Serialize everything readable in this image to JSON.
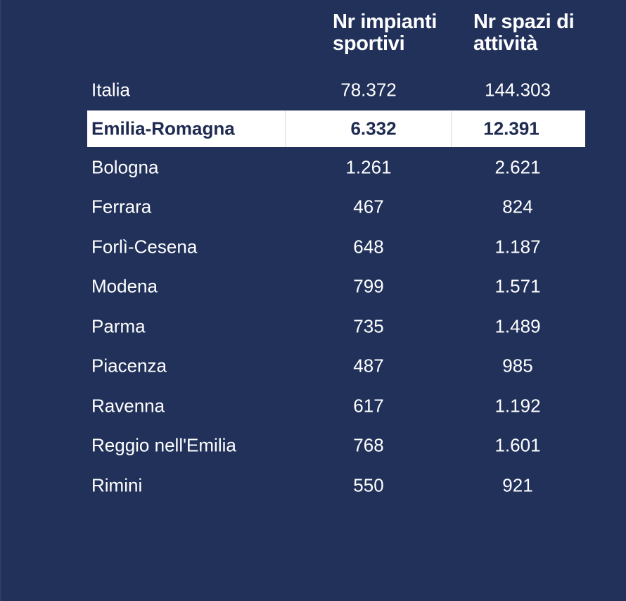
{
  "headers": {
    "impianti": "Nr impianti sportivi",
    "spazi": "Nr spazi di attività"
  },
  "rows": [
    {
      "name": "Italia",
      "impianti": "78.372",
      "spazi": "144.303"
    },
    {
      "name": "Emilia-Romagna",
      "impianti": "6.332",
      "spazi": "12.391"
    },
    {
      "name": "Bologna",
      "impianti": "1.261",
      "spazi": "2.621"
    },
    {
      "name": "Ferrara",
      "impianti": "467",
      "spazi": "824"
    },
    {
      "name": "Forlì-Cesena",
      "impianti": "648",
      "spazi": "1.187"
    },
    {
      "name": "Modena",
      "impianti": "799",
      "spazi": "1.571"
    },
    {
      "name": "Parma",
      "impianti": "735",
      "spazi": "1.489"
    },
    {
      "name": "Piacenza",
      "impianti": "487",
      "spazi": "985"
    },
    {
      "name": "Ravenna",
      "impianti": "617",
      "spazi": "1.192"
    },
    {
      "name": "Reggio nell'Emilia",
      "impianti": "768",
      "spazi": "1.601"
    },
    {
      "name": "Rimini",
      "impianti": "550",
      "spazi": "921"
    }
  ],
  "colors": {
    "background": "#21315a",
    "highlight_bg": "#ffffff",
    "highlight_text": "#1e2a50",
    "text": "#ffffff"
  }
}
